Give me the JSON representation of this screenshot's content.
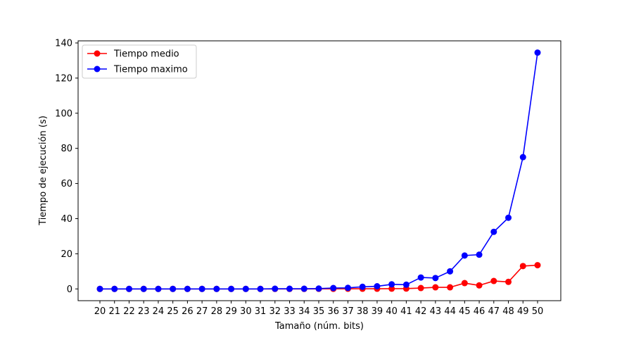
{
  "chart_data": {
    "type": "line",
    "title": "",
    "xlabel": "Tamaño (núm. bits)",
    "ylabel": "Tiempo de ejecución (s)",
    "categories": [
      "20",
      "21",
      "22",
      "23",
      "24",
      "25",
      "26",
      "27",
      "28",
      "29",
      "30",
      "31",
      "32",
      "33",
      "34",
      "35",
      "36",
      "37",
      "38",
      "39",
      "40",
      "41",
      "42",
      "43",
      "44",
      "45",
      "46",
      "47",
      "48",
      "49",
      "50"
    ],
    "series": [
      {
        "name": "Tiempo medio",
        "color": "#ff0000",
        "values": [
          0,
          0,
          0,
          0,
          0,
          0,
          0,
          0,
          0,
          0,
          0,
          0,
          0,
          0,
          0,
          0.05,
          0.05,
          0.1,
          0.1,
          0.1,
          0.15,
          0.2,
          0.5,
          0.9,
          0.9,
          3.3,
          2.0,
          4.5,
          4.0,
          13.0,
          13.5
        ]
      },
      {
        "name": "Tiempo maximo",
        "color": "#0000ff",
        "values": [
          0,
          0,
          0,
          0,
          0,
          0,
          0,
          0,
          0,
          0,
          0,
          0,
          0.1,
          0.1,
          0.1,
          0.2,
          0.5,
          0.6,
          1.2,
          1.5,
          2.6,
          2.4,
          6.5,
          6.2,
          10.0,
          19.0,
          19.5,
          32.5,
          40.5,
          75.0,
          134.5
        ]
      }
    ],
    "ylim": [
      -6.7,
      141.2
    ],
    "yticks": [
      "0",
      "20",
      "40",
      "60",
      "80",
      "100",
      "120",
      "140"
    ],
    "grid": false,
    "legend_position": "top-left"
  }
}
